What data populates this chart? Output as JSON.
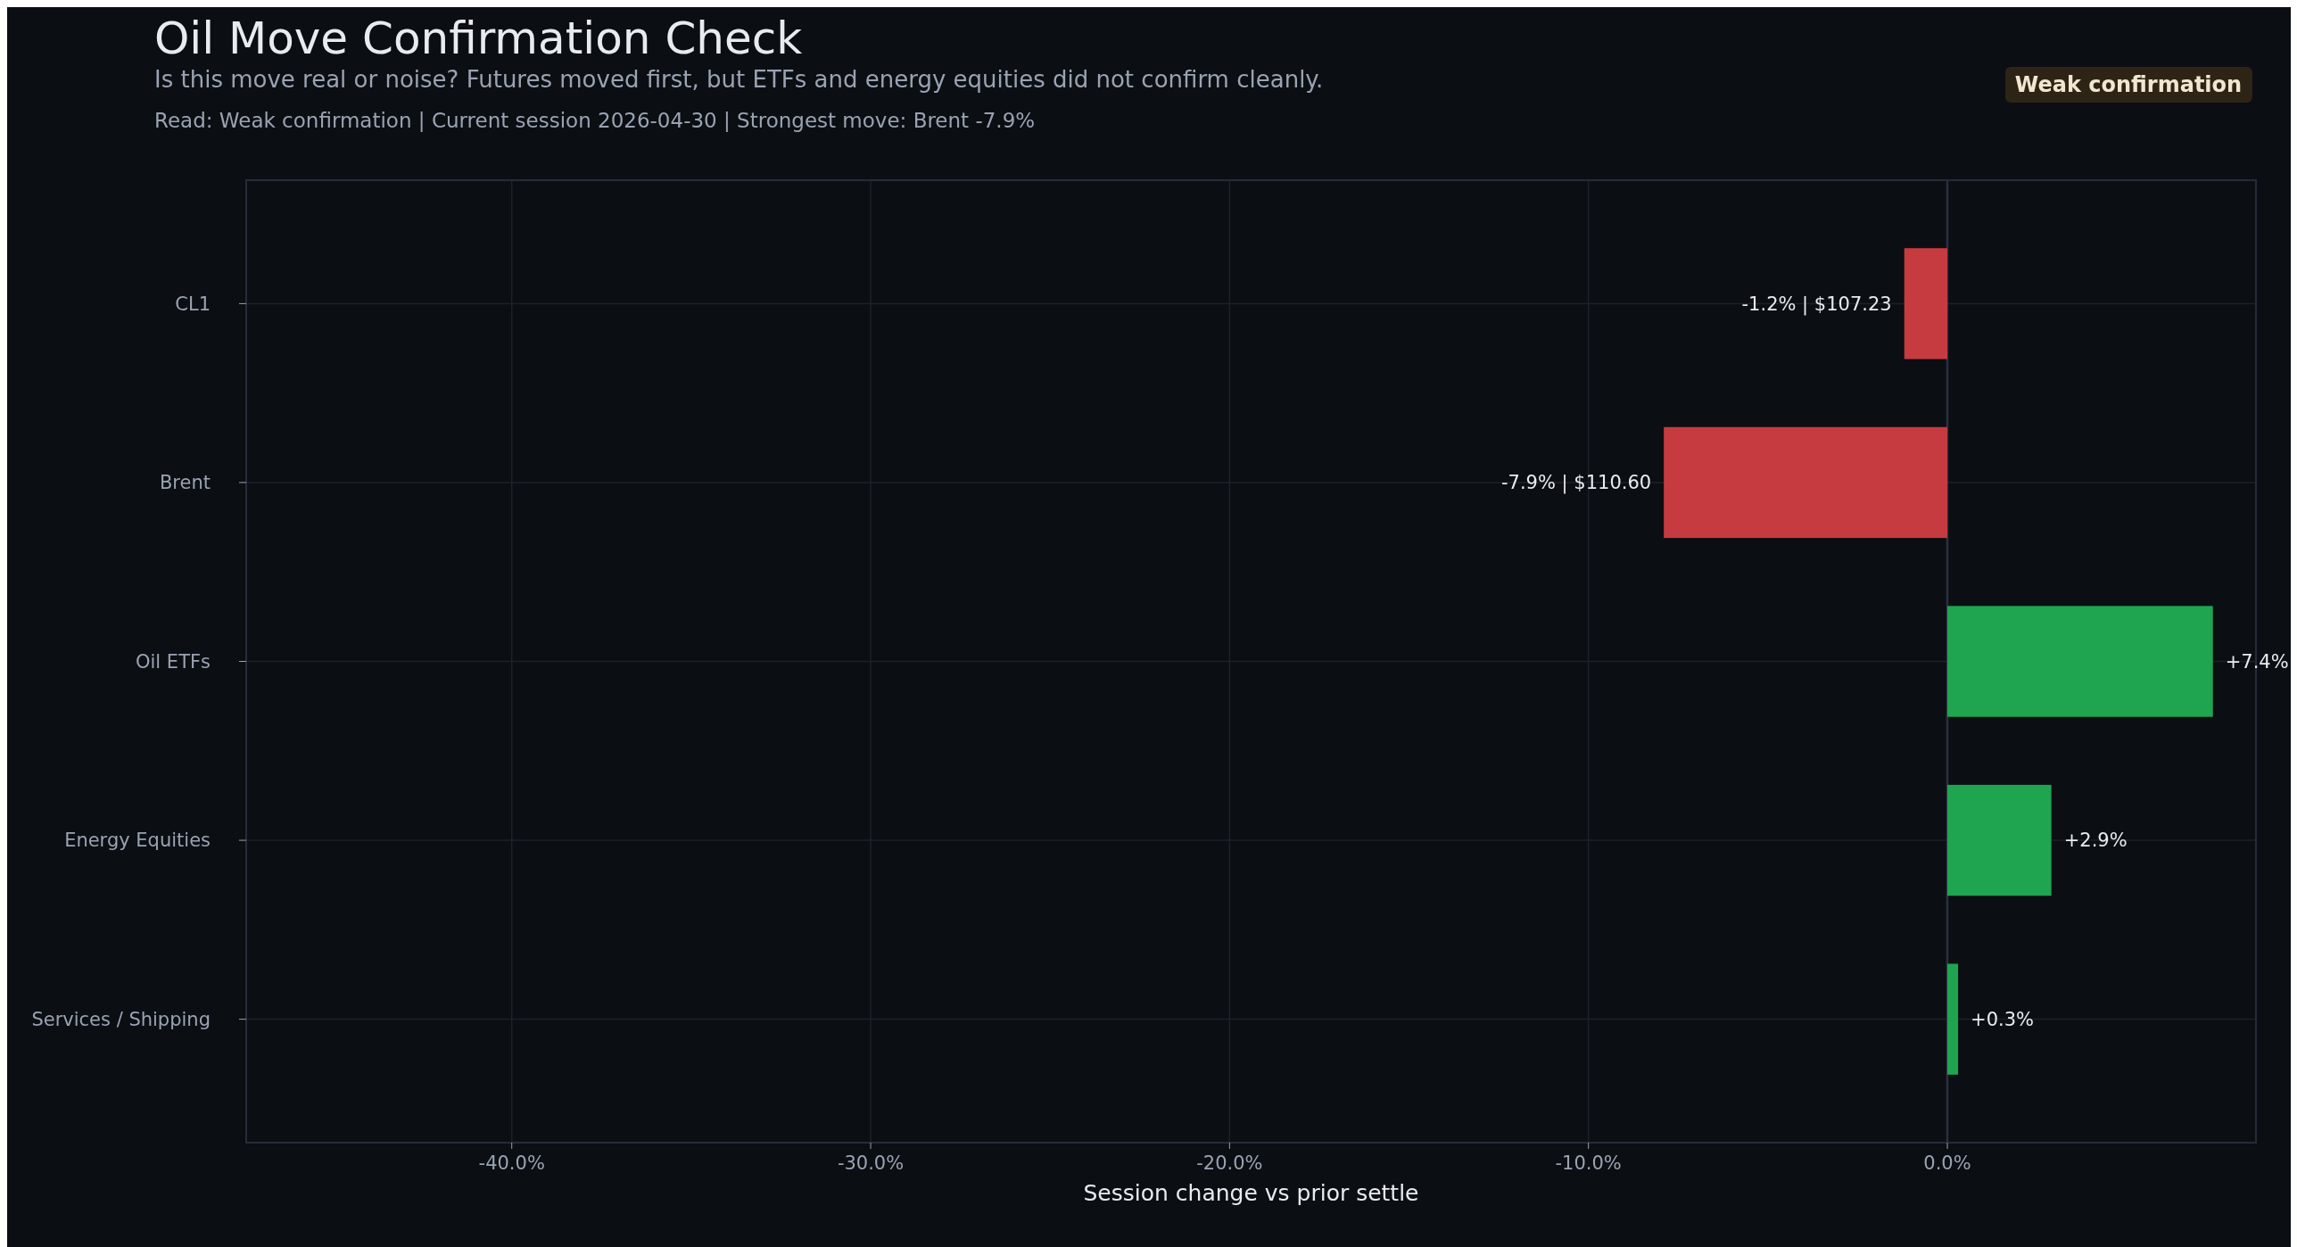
{
  "chart_data": {
    "type": "bar",
    "orientation": "horizontal",
    "title": "Oil Move Confirmation Check",
    "subtitle": "Is this move real or noise? Futures moved first, but ETFs and energy equities did not confirm cleanly.",
    "xlabel": "Session change vs prior settle",
    "annotations": [
      "Read: Weak confirmation  |  Current session 2026-04-30  |  Strongest move: Brent -7.9%",
      "Weak confirmation"
    ],
    "categories": [
      "CL1",
      "Brent",
      "Oil ETFs",
      "Energy Equities",
      "Services / Shipping"
    ],
    "values": [
      -1.2,
      -7.9,
      7.4,
      2.9,
      0.3
    ],
    "colors": [
      "#c63b3f",
      "#c63b3f",
      "#1fa550",
      "#1fa550",
      "#1fa550"
    ],
    "value_labels": [
      "-1.2% | $107.23",
      "-7.9% | $110.60",
      "+7.4%",
      "+2.9%",
      "+0.3%"
    ],
    "xlim": [
      -47.4,
      8.6
    ],
    "xticks": [
      {
        "value": -40,
        "label": "-40.0%"
      },
      {
        "value": -30,
        "label": "-30.0%"
      },
      {
        "value": -20,
        "label": "-20.0%"
      },
      {
        "value": -10,
        "label": "-10.0%"
      },
      {
        "value": 0,
        "label": "0.0%"
      }
    ],
    "grid": true,
    "ref_lines": [
      {
        "axis": "x",
        "value": 0,
        "color": "#2a3140"
      }
    ]
  }
}
